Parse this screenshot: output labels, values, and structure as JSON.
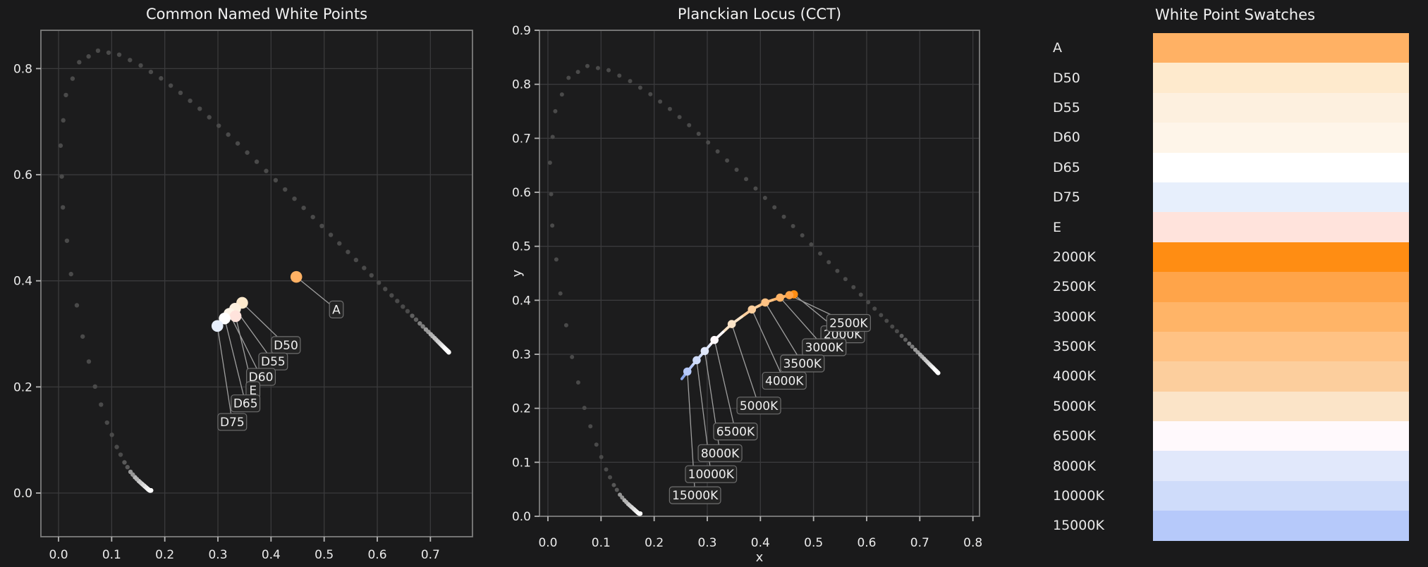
{
  "theme": {
    "figure_bg": "#1a1a1b",
    "axes_bg": "#1c1c1d",
    "grid_color": "#3a3a3c",
    "spine_color": "#7d7d7d",
    "tick_mark_color": "#b5b5b5",
    "tick_label_color": "#ebebeb",
    "title_color": "#f2f2f2",
    "annotation_text_color": "#f0f0f0",
    "annotation_box_bg": "#242424",
    "annotation_box_border": "#6e6e6e",
    "leader_line_color": "#9f9f9f",
    "locus_dot_dark": "#4a4a4a",
    "locus_dot_bright": "#ffffff"
  },
  "chart_data": [
    {
      "type": "scatter",
      "title": "Common Named White Points",
      "xlabel": "",
      "ylabel": "",
      "xlim": [
        -0.0332,
        0.7792
      ],
      "ylim": [
        -0.0823,
        0.8722
      ],
      "xticks": [
        "0.0",
        "0.1",
        "0.2",
        "0.3",
        "0.4",
        "0.5",
        "0.6",
        "0.7"
      ],
      "yticks": [
        "0.0",
        "0.2",
        "0.4",
        "0.6",
        "0.8"
      ],
      "grid": true,
      "legend": "none",
      "points": [
        {
          "label": "A",
          "x": 0.4476,
          "y": 0.4074,
          "color": "#FFB164",
          "label_x": 0.523,
          "label_y": 0.346
        },
        {
          "label": "D50",
          "x": 0.3457,
          "y": 0.3585,
          "color": "#FEEACD",
          "label_x": 0.428,
          "label_y": 0.279
        },
        {
          "label": "D55",
          "x": 0.3324,
          "y": 0.3474,
          "color": "#FDF0DF",
          "label_x": 0.404,
          "label_y": 0.248
        },
        {
          "label": "D60",
          "x": 0.3217,
          "y": 0.3378,
          "color": "#FEF5E9",
          "label_x": 0.381,
          "label_y": 0.219
        },
        {
          "label": "E",
          "x": 0.3333,
          "y": 0.3333,
          "color": "#FFE3DC",
          "label_x": 0.366,
          "label_y": 0.194
        },
        {
          "label": "D65",
          "x": 0.3127,
          "y": 0.329,
          "color": "#FFFFFF",
          "label_x": 0.352,
          "label_y": 0.169
        },
        {
          "label": "D75",
          "x": 0.299,
          "y": 0.3149,
          "color": "#E7EFFC",
          "label_x": 0.327,
          "label_y": 0.134
        }
      ]
    },
    {
      "type": "line",
      "title": "Planckian Locus (CCT)",
      "xlabel": "x",
      "ylabel": "y",
      "xlim": [
        -0.0159,
        0.8124
      ],
      "ylim": [
        0.0,
        0.9
      ],
      "xticks": [
        "0.0",
        "0.1",
        "0.2",
        "0.3",
        "0.4",
        "0.5",
        "0.6",
        "0.7",
        "0.8"
      ],
      "yticks": [
        "0.0",
        "0.1",
        "0.2",
        "0.3",
        "0.4",
        "0.5",
        "0.6",
        "0.7",
        "0.8",
        "0.9"
      ],
      "grid": true,
      "legend": "none",
      "points": [
        {
          "label": "2000K",
          "x": 0.463,
          "y": 0.411,
          "color": "#FF8D13",
          "label_x": 0.555,
          "label_y": 0.337
        },
        {
          "label": "2500K",
          "x": 0.4545,
          "y": 0.4095,
          "color": "#FFA449",
          "label_x": 0.566,
          "label_y": 0.358
        },
        {
          "label": "3000K",
          "x": 0.437,
          "y": 0.405,
          "color": "#FFB467",
          "label_x": 0.52,
          "label_y": 0.313
        },
        {
          "label": "3500K",
          "x": 0.409,
          "y": 0.396,
          "color": "#FFC284",
          "label_x": 0.479,
          "label_y": 0.283
        },
        {
          "label": "4000K",
          "x": 0.384,
          "y": 0.383,
          "color": "#FCCE9D",
          "label_x": 0.445,
          "label_y": 0.251
        },
        {
          "label": "5000K",
          "x": 0.346,
          "y": 0.356,
          "color": "#FBE4C8",
          "label_x": 0.397,
          "label_y": 0.205
        },
        {
          "label": "6500K",
          "x": 0.3135,
          "y": 0.3265,
          "color": "#FFF9FC",
          "label_x": 0.353,
          "label_y": 0.157
        },
        {
          "label": "8000K",
          "x": 0.2952,
          "y": 0.306,
          "color": "#E1E8FB",
          "label_x": 0.324,
          "label_y": 0.117
        },
        {
          "label": "10000K",
          "x": 0.28,
          "y": 0.289,
          "color": "#CFDCFA",
          "label_x": 0.307,
          "label_y": 0.078
        },
        {
          "label": "15000K",
          "x": 0.2625,
          "y": 0.268,
          "color": "#B6C9FA",
          "label_x": 0.277,
          "label_y": 0.039
        }
      ],
      "locus_tail": {
        "x": 0.252,
        "y": 0.2545,
        "color": "#8CA8EC"
      }
    },
    {
      "type": "swatches",
      "title": "White Point Swatches",
      "rows": [
        {
          "label": "A",
          "color": "#FFB164"
        },
        {
          "label": "D50",
          "color": "#FEEACD"
        },
        {
          "label": "D55",
          "color": "#FDF0DF"
        },
        {
          "label": "D60",
          "color": "#FEF5E9"
        },
        {
          "label": "D65",
          "color": "#FFFFFF"
        },
        {
          "label": "D75",
          "color": "#E7EFFC"
        },
        {
          "label": "E",
          "color": "#FFE3DC"
        },
        {
          "label": "2000K",
          "color": "#FF8D13"
        },
        {
          "label": "2500K",
          "color": "#FFA449"
        },
        {
          "label": "3000K",
          "color": "#FFB467"
        },
        {
          "label": "3500K",
          "color": "#FFC284"
        },
        {
          "label": "4000K",
          "color": "#FCCE9D"
        },
        {
          "label": "5000K",
          "color": "#FBE4C8"
        },
        {
          "label": "6500K",
          "color": "#FFF9FC"
        },
        {
          "label": "8000K",
          "color": "#E1E8FB"
        },
        {
          "label": "10000K",
          "color": "#CFDCFA"
        },
        {
          "label": "15000K",
          "color": "#B6C9FA"
        }
      ]
    }
  ],
  "spectral_locus": {
    "start_nm": 380,
    "step_nm": 5,
    "points": [
      [
        0.1741,
        0.005
      ],
      [
        0.174,
        0.005
      ],
      [
        0.1738,
        0.0049
      ],
      [
        0.1736,
        0.0049
      ],
      [
        0.1733,
        0.0048
      ],
      [
        0.173,
        0.0048
      ],
      [
        0.1726,
        0.0048
      ],
      [
        0.1721,
        0.0048
      ],
      [
        0.1714,
        0.0051
      ],
      [
        0.1703,
        0.0058
      ],
      [
        0.1689,
        0.0069
      ],
      [
        0.1669,
        0.0086
      ],
      [
        0.1644,
        0.0109
      ],
      [
        0.1611,
        0.0138
      ],
      [
        0.1566,
        0.0177
      ],
      [
        0.151,
        0.0227
      ],
      [
        0.144,
        0.0297
      ],
      [
        0.1355,
        0.0399
      ],
      [
        0.1241,
        0.0578
      ],
      [
        0.1096,
        0.0868
      ],
      [
        0.0913,
        0.1327
      ],
      [
        0.0687,
        0.2007
      ],
      [
        0.0454,
        0.295
      ],
      [
        0.0235,
        0.4127
      ],
      [
        0.0082,
        0.5384
      ],
      [
        0.0039,
        0.6548
      ],
      [
        0.0139,
        0.7502
      ],
      [
        0.0389,
        0.812
      ],
      [
        0.0743,
        0.8338
      ],
      [
        0.1142,
        0.8262
      ],
      [
        0.1547,
        0.8059
      ],
      [
        0.1929,
        0.7816
      ],
      [
        0.2296,
        0.7543
      ],
      [
        0.2658,
        0.7243
      ],
      [
        0.3016,
        0.6923
      ],
      [
        0.3373,
        0.6589
      ],
      [
        0.3731,
        0.6245
      ],
      [
        0.4087,
        0.5896
      ],
      [
        0.4441,
        0.5547
      ],
      [
        0.4788,
        0.5202
      ],
      [
        0.5125,
        0.4866
      ],
      [
        0.5448,
        0.4544
      ],
      [
        0.5752,
        0.4242
      ],
      [
        0.6029,
        0.3965
      ],
      [
        0.627,
        0.3725
      ],
      [
        0.6482,
        0.3514
      ],
      [
        0.6658,
        0.334
      ],
      [
        0.6801,
        0.3197
      ],
      [
        0.6915,
        0.3083
      ],
      [
        0.7006,
        0.2993
      ],
      [
        0.7079,
        0.292
      ],
      [
        0.714,
        0.2859
      ],
      [
        0.719,
        0.2809
      ],
      [
        0.723,
        0.277
      ],
      [
        0.726,
        0.274
      ],
      [
        0.7283,
        0.2717
      ],
      [
        0.73,
        0.27
      ],
      [
        0.7311,
        0.2689
      ],
      [
        0.732,
        0.268
      ],
      [
        0.7327,
        0.2673
      ],
      [
        0.7334,
        0.2666
      ],
      [
        0.734,
        0.266
      ],
      [
        0.7344,
        0.2656
      ],
      [
        0.7346,
        0.2654
      ],
      [
        0.7347,
        0.2653
      ]
    ]
  }
}
